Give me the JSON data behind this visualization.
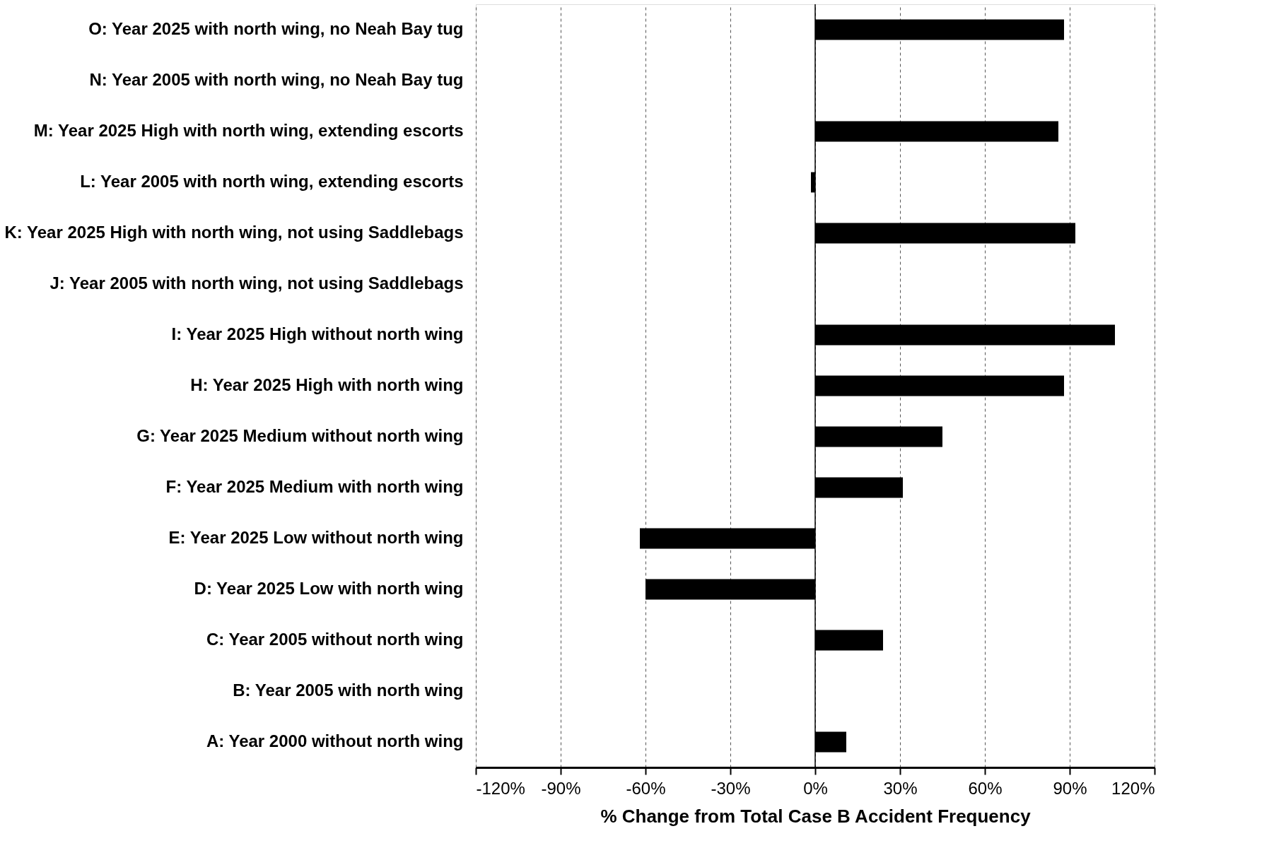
{
  "chart_data": {
    "type": "bar",
    "orientation": "horizontal",
    "xlabel": "% Change from Total Case B Accident Frequency",
    "categories": [
      "O: Year 2025 with north wing, no Neah Bay tug",
      "N: Year 2005 with north wing, no Neah Bay tug",
      "M: Year 2025 High with north wing, extending escorts",
      "L: Year 2005 with north wing, extending escorts",
      "K: Year 2025 High with north wing, not using Saddlebags",
      "J: Year 2005 with north wing, not using Saddlebags",
      "I: Year 2025 High without north wing",
      "H: Year 2025 High with north wing",
      "G: Year 2025 Medium without north wing",
      "F: Year 2025 Medium with north wing",
      "E: Year 2025 Low without north wing",
      "D: Year 2025 Low with north wing",
      "C: Year 2005 without north wing",
      "B: Year 2005 with north wing",
      "A: Year 2000 without north wing"
    ],
    "values": [
      88,
      0,
      86,
      -1.5,
      92,
      0,
      106,
      88,
      45,
      31,
      -62,
      -60,
      24,
      0,
      11
    ],
    "color": "#000000",
    "xlim": [
      -120,
      120
    ],
    "xticks": [
      {
        "value": -120,
        "label": "-120%"
      },
      {
        "value": -90,
        "label": "-90%"
      },
      {
        "value": -60,
        "label": "-60%"
      },
      {
        "value": -30,
        "label": "-30%"
      },
      {
        "value": 0,
        "label": "0%"
      },
      {
        "value": 30,
        "label": "30%"
      },
      {
        "value": 60,
        "label": "60%"
      },
      {
        "value": 90,
        "label": "90%"
      },
      {
        "value": 120,
        "label": "120%"
      }
    ],
    "grid": "x",
    "ref_lines": [
      {
        "axis": "x",
        "value": 0,
        "color": "#000000"
      }
    ]
  }
}
